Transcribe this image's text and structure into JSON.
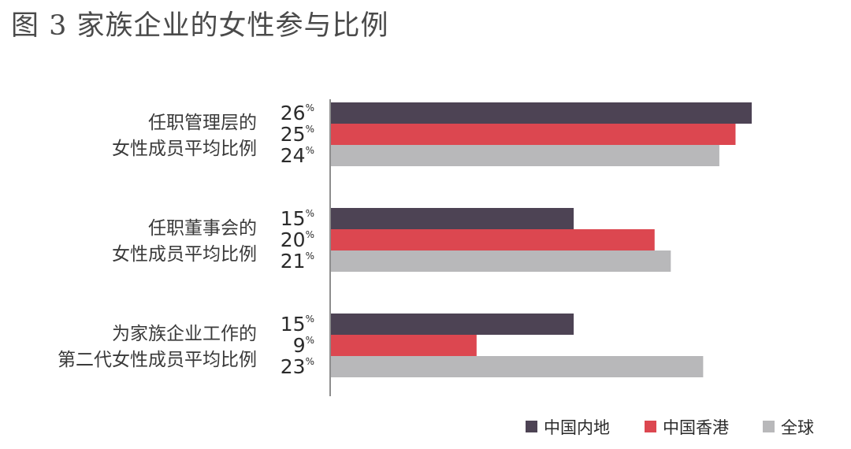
{
  "title": "图 3  家族企业的女性参与比例",
  "chart_data": {
    "type": "bar",
    "orientation": "horizontal",
    "categories": [
      [
        "任职管理层的",
        "女性成员平均比例"
      ],
      [
        "任职董事会的",
        "女性成员平均比例"
      ],
      [
        "为家族企业工作的",
        "第二代女性成员平均比例"
      ]
    ],
    "series": [
      {
        "name": "中国内地",
        "color": "#4d4354",
        "values": [
          26,
          15,
          15
        ],
        "labels": [
          "26",
          "15",
          "15"
        ]
      },
      {
        "name": "中国香港",
        "color": "#dc4750",
        "values": [
          25,
          20,
          9
        ],
        "labels": [
          "25",
          "20",
          "9"
        ]
      },
      {
        "name": "全球",
        "color": "#b8b8ba",
        "values": [
          24,
          21,
          23
        ],
        "labels": [
          "24",
          "21",
          "23"
        ]
      }
    ],
    "unit_label": "%",
    "xlim": [
      0,
      26
    ],
    "legend_position": "bottom-right",
    "grid": false
  }
}
